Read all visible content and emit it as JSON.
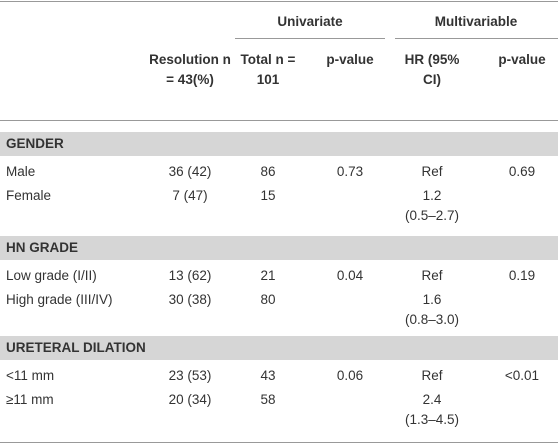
{
  "header": {
    "groups": [
      "Univariate",
      "Multivariable"
    ],
    "columns": [
      "Resolution n = 43(%)",
      "Total n = 101",
      "p-value",
      "HR (95% CI)",
      "p-value"
    ]
  },
  "sections": [
    {
      "title": "GENDER",
      "rows": [
        {
          "label": "Male",
          "resolution": "36 (42)",
          "total": "86",
          "univariate_p": "0.73",
          "hr": [
            "Ref"
          ],
          "multivariable_p": "0.69"
        },
        {
          "label": "Female",
          "resolution": "7 (47)",
          "total": "15",
          "hr": [
            "1.2",
            "(0.5–2.7)"
          ]
        }
      ]
    },
    {
      "title": "HN GRADE",
      "rows": [
        {
          "label": "Low grade (I/II)",
          "resolution": "13 (62)",
          "total": "21",
          "univariate_p": "0.04",
          "hr": [
            "Ref"
          ],
          "multivariable_p": "0.19"
        },
        {
          "label": "High grade (III/IV)",
          "resolution": "30 (38)",
          "total": "80",
          "hr": [
            "1.6",
            "(0.8–3.0)"
          ]
        }
      ]
    },
    {
      "title": "URETERAL DILATION",
      "rows": [
        {
          "label": "<11 mm",
          "resolution": "23 (53)",
          "total": "43",
          "univariate_p": "0.06",
          "hr": [
            "Ref"
          ],
          "multivariable_p": "<0.01"
        },
        {
          "label": "≥11 mm",
          "resolution": "20 (34)",
          "total": "58",
          "hr": [
            "2.4",
            "(1.3–4.5)"
          ]
        }
      ]
    }
  ]
}
